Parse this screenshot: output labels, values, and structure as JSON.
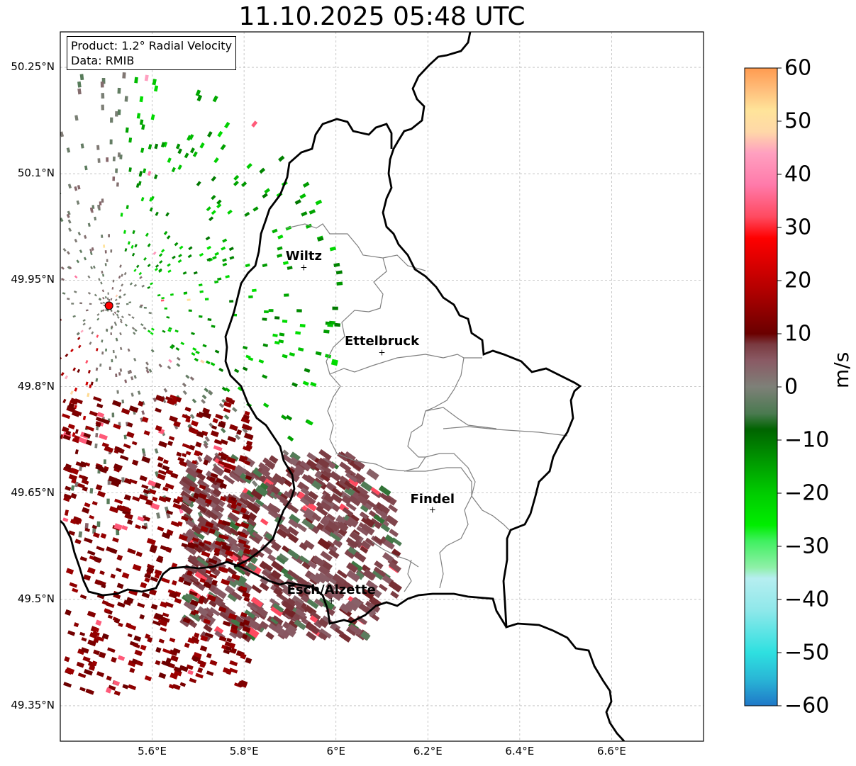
{
  "title": "11.10.2025 05:48 UTC",
  "info": {
    "product": "Product: 1.2° Radial Velocity",
    "data": "Data: RMIB"
  },
  "axes": {
    "y_ticks": [
      "50.25°N",
      "50.1°N",
      "49.95°N",
      "49.8°N",
      "49.65°N",
      "49.5°N",
      "49.35°N"
    ],
    "x_ticks": [
      "5.6°E",
      "5.8°E",
      "6°E",
      "6.2°E",
      "6.4°E",
      "6.6°E"
    ],
    "lon_range": [
      5.4,
      6.8
    ],
    "lat_range": [
      49.3,
      50.3
    ],
    "grid": true
  },
  "cities": [
    {
      "name": "Wiltz",
      "lon": 5.93,
      "lat": 49.968
    },
    {
      "name": "Ettelbruck",
      "lon": 6.1,
      "lat": 49.848
    },
    {
      "name": "Findel",
      "lon": 6.21,
      "lat": 49.626
    },
    {
      "name": "Esch/Alzette",
      "lon": 5.99,
      "lat": 49.498
    }
  ],
  "radar_site": {
    "lon": 5.506,
    "lat": 49.914,
    "color": "#ff0000"
  },
  "colorbar": {
    "label": "m/s",
    "ticks": [
      "60",
      "50",
      "40",
      "30",
      "20",
      "10",
      "0",
      "−10",
      "−20",
      "−30",
      "−40",
      "−50",
      "−60"
    ],
    "range": [
      -60,
      60
    ],
    "stops": [
      {
        "v": -60,
        "c": "#1f78c8"
      },
      {
        "v": -55,
        "c": "#29b6d6"
      },
      {
        "v": -50,
        "c": "#2ee0e0"
      },
      {
        "v": -42,
        "c": "#8fe8ea"
      },
      {
        "v": -36,
        "c": "#b6eef0"
      },
      {
        "v": -34,
        "c": "#8ff0a8"
      },
      {
        "v": -29,
        "c": "#40f060"
      },
      {
        "v": -26,
        "c": "#00ee00"
      },
      {
        "v": -20,
        "c": "#00cc00"
      },
      {
        "v": -14,
        "c": "#009900"
      },
      {
        "v": -8,
        "c": "#006400"
      },
      {
        "v": -5,
        "c": "#4a7a50"
      },
      {
        "v": 0,
        "c": "#7e8078"
      },
      {
        "v": 5,
        "c": "#8a5a64"
      },
      {
        "v": 8,
        "c": "#7a3a40"
      },
      {
        "v": 10,
        "c": "#6a0000"
      },
      {
        "v": 18,
        "c": "#b00000"
      },
      {
        "v": 28,
        "c": "#ff0000"
      },
      {
        "v": 32,
        "c": "#ff4a60"
      },
      {
        "v": 38,
        "c": "#ff7aaa"
      },
      {
        "v": 44,
        "c": "#ffa0c0"
      },
      {
        "v": 48,
        "c": "#ffd8a8"
      },
      {
        "v": 52,
        "c": "#ffe49a"
      },
      {
        "v": 56,
        "c": "#ffbd7a"
      },
      {
        "v": 60,
        "c": "#ff9b50"
      }
    ]
  },
  "colors": {
    "border": "#000000",
    "canton_lines": "#808080",
    "grid": "#bbbbbb"
  }
}
